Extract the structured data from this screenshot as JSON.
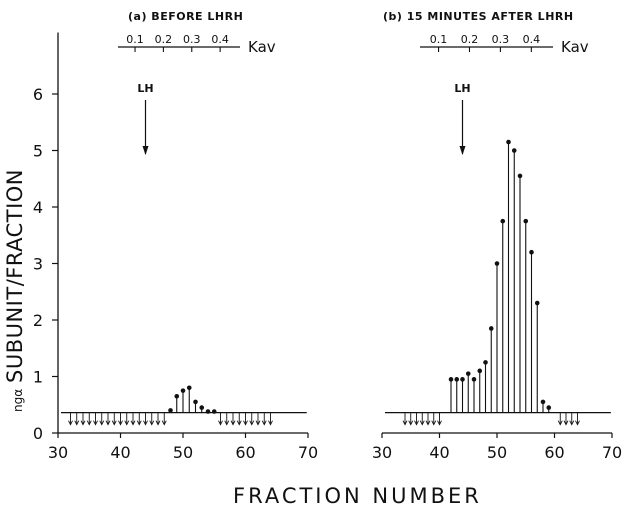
{
  "figure": {
    "ylabel_prefix": "ngα",
    "ylabel_main": "SUBUNIT/FRACTION",
    "xlabel": "FRACTION NUMBER"
  },
  "chart_data": [
    {
      "type": "bar",
      "title": "(a) BEFORE LHRH",
      "xlabel": "FRACTION NUMBER",
      "ylabel": "ngα SUBUNIT/FRACTION",
      "xlim": [
        30,
        70
      ],
      "ylim": [
        0,
        7
      ],
      "xticks": [
        30,
        40,
        50,
        60,
        70
      ],
      "yticks": [
        0,
        1,
        2,
        3,
        4,
        5,
        6
      ],
      "detection_limit": 0.36,
      "marker": {
        "label": "LH",
        "x": 44
      },
      "kav_axis": {
        "label": "Kav",
        "ticks": [
          0.1,
          0.2,
          0.3,
          0.4
        ],
        "range": [
          0.04,
          0.47
        ]
      },
      "below_limit_fractions": [
        32,
        33,
        34,
        35,
        36,
        37,
        38,
        39,
        40,
        41,
        42,
        43,
        44,
        45,
        46,
        47,
        56,
        57,
        58,
        59,
        60,
        61,
        62,
        63,
        64
      ],
      "x": [
        48,
        49,
        50,
        51,
        52,
        53,
        54,
        55
      ],
      "values": [
        0.4,
        0.65,
        0.75,
        0.8,
        0.55,
        0.45,
        0.38,
        0.38
      ]
    },
    {
      "type": "bar",
      "title": "(b) 15 MINUTES AFTER LHRH",
      "xlabel": "FRACTION NUMBER",
      "ylabel": "ngα SUBUNIT/FRACTION",
      "xlim": [
        30,
        70
      ],
      "ylim": [
        0,
        7
      ],
      "xticks": [
        30,
        40,
        50,
        60,
        70
      ],
      "yticks": [
        0,
        1,
        2,
        3,
        4,
        5,
        6
      ],
      "detection_limit": 0.36,
      "marker": {
        "label": "LH",
        "x": 44
      },
      "kav_axis": {
        "label": "Kav",
        "ticks": [
          0.1,
          0.2,
          0.3,
          0.4
        ],
        "range": [
          0.04,
          0.47
        ]
      },
      "below_limit_fractions": [
        34,
        35,
        36,
        37,
        38,
        39,
        40,
        61,
        62,
        63,
        64
      ],
      "x": [
        42,
        43,
        44,
        45,
        46,
        47,
        48,
        49,
        50,
        51,
        52,
        53,
        54,
        55,
        56,
        57,
        58,
        59
      ],
      "values": [
        0.95,
        0.95,
        0.95,
        1.05,
        0.95,
        1.1,
        1.25,
        1.85,
        3.0,
        3.75,
        5.15,
        5.0,
        4.55,
        3.75,
        3.2,
        2.3,
        0.55,
        0.45
      ]
    }
  ]
}
